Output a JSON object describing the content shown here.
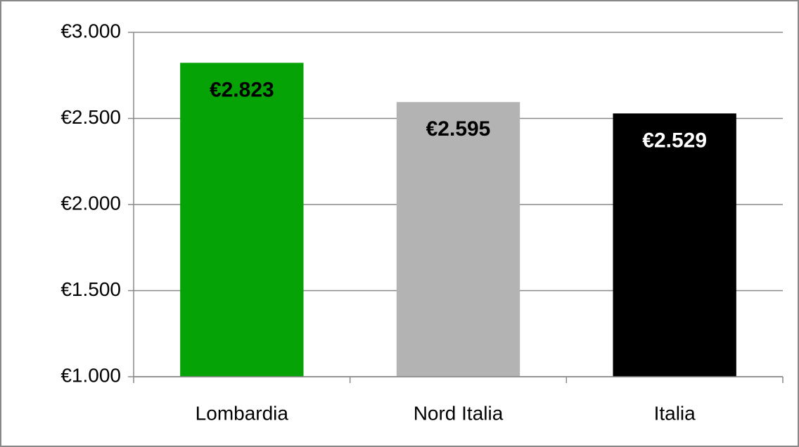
{
  "chart_data": {
    "type": "bar",
    "categories": [
      "Lombardia",
      "Nord Italia",
      "Italia"
    ],
    "values": [
      2823,
      2595,
      2529
    ],
    "value_labels": [
      "€2.823",
      "€2.595",
      "€2.529"
    ],
    "colors": [
      "#05a305",
      "#b3b3b3",
      "#000000"
    ],
    "ylim": [
      1000,
      3000
    ],
    "yticks": [
      {
        "value": 1000,
        "label": "€1.000"
      },
      {
        "value": 1500,
        "label": "€1.500"
      },
      {
        "value": 2000,
        "label": "€2.000"
      },
      {
        "value": 2500,
        "label": "€2.500"
      },
      {
        "value": 3000,
        "label": "€3.000"
      }
    ],
    "grid": true
  }
}
